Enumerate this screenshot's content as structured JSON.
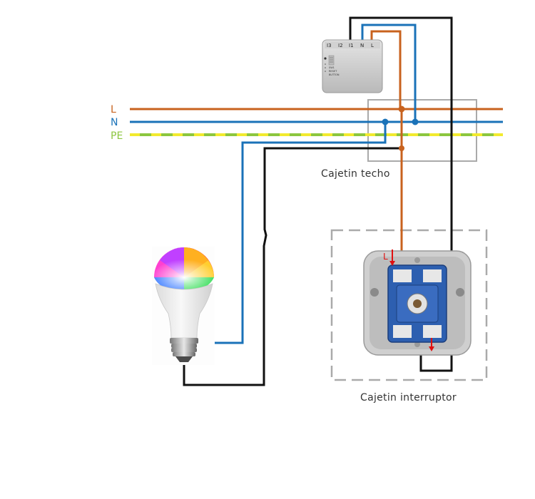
{
  "bus_labels": {
    "live": "L",
    "neutral": "N",
    "earth": "PE"
  },
  "module": {
    "terminals": [
      "I3",
      "I2",
      "I1",
      "N",
      "L"
    ],
    "marks": [
      "SW1",
      "RESET",
      "BUTTON"
    ]
  },
  "switch_marker": "L",
  "captions": {
    "ceiling_box": "Cajetin techo",
    "switch_box": "Cajetin interruptor"
  },
  "colors": {
    "live": "#c8621e",
    "neutral": "#1a72b8",
    "earth_green": "#8cc63f",
    "earth_yellow": "#f2ea2e",
    "switched": "#111111",
    "box_outline": "#aaaaaa",
    "marker_red": "#e01010"
  },
  "icons": [
    "rgb-led-bulb-icon",
    "wall-switch-mechanism-icon",
    "smart-relay-module-icon"
  ]
}
